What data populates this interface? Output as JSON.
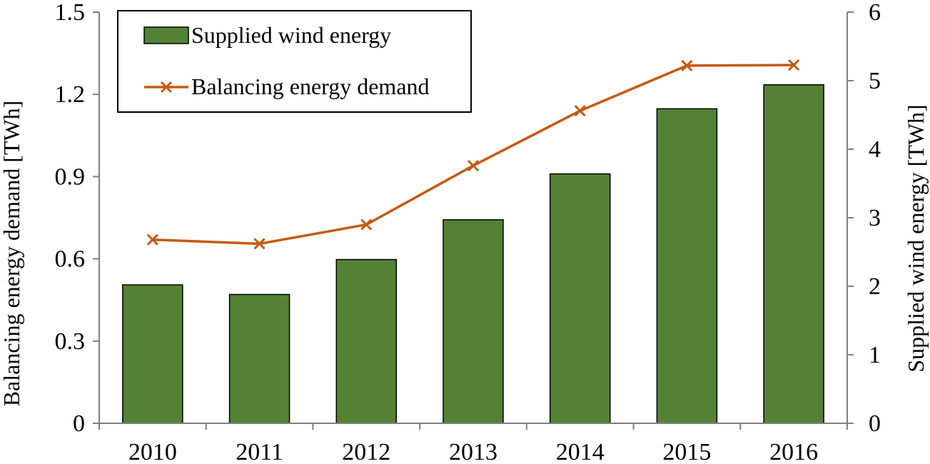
{
  "chart_data": {
    "type": "bar",
    "categories": [
      "2010",
      "2011",
      "2012",
      "2013",
      "2014",
      "2015",
      "2016"
    ],
    "series": [
      {
        "name": "Supplied wind energy",
        "type": "bar",
        "axis": "right",
        "values": [
          2.02,
          1.88,
          2.39,
          2.97,
          3.64,
          4.59,
          4.94
        ],
        "color": "#548235"
      },
      {
        "name": "Balancing energy demand",
        "type": "line",
        "axis": "left",
        "values": [
          0.67,
          0.655,
          0.725,
          0.94,
          1.14,
          1.305,
          1.307
        ],
        "color": "#C55A11"
      }
    ],
    "ylabel_left": "Balancing energy demand [TWh]",
    "ylabel_right": "Supplied wind energy [TWh]",
    "ylim_left": [
      0,
      1.5
    ],
    "ylim_right": [
      0,
      6
    ],
    "yticks_left": [
      "0",
      "0.3",
      "0.6",
      "0.9",
      "1.2",
      "1.5"
    ],
    "yticks_right": [
      "0",
      "1",
      "2",
      "3",
      "4",
      "5",
      "6"
    ],
    "legend_position": "top-left",
    "grid": false
  }
}
